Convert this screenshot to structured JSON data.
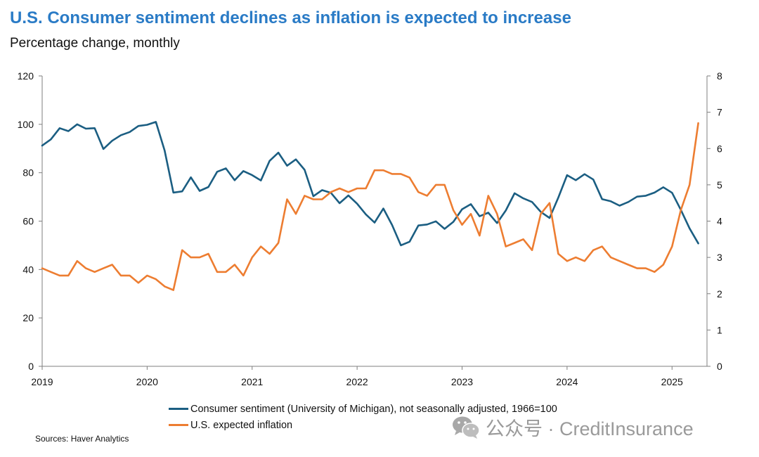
{
  "title": "U.S. Consumer sentiment declines as inflation is expected to increase",
  "subtitle": "Percentage change, monthly",
  "sources": "Sources: Haver Analytics",
  "watermark": {
    "text": "公众号 · CreditInsurance",
    "icon": "wechat-icon"
  },
  "colors": {
    "sentiment": "#1b5e82",
    "inflation": "#ed7d31",
    "title": "#2a7bc6",
    "axis": "#7f7f7f"
  },
  "chart_data": {
    "type": "line",
    "grid": false,
    "legend_position": "bottom",
    "x_range": [
      2019.0,
      2025.333
    ],
    "x_ticks": [
      "2019",
      "2020",
      "2021",
      "2022",
      "2023",
      "2024",
      "2025"
    ],
    "y_left": {
      "range": [
        0,
        120
      ],
      "ticks": [
        "0",
        "20",
        "40",
        "60",
        "80",
        "100",
        "120"
      ]
    },
    "y_right": {
      "range": [
        0,
        8
      ],
      "ticks": [
        "0",
        "1",
        "2",
        "3",
        "4",
        "5",
        "6",
        "7",
        "8"
      ]
    },
    "series": [
      {
        "name": "Consumer sentiment (University of Michigan), not seasonally adjusted, 1966=100",
        "axis": "left",
        "start": "2019-01",
        "values": [
          91.2,
          93.8,
          98.4,
          97.2,
          100.0,
          98.2,
          98.4,
          89.8,
          93.2,
          95.5,
          96.8,
          99.3,
          99.8,
          101.0,
          89.1,
          71.8,
          72.3,
          78.1,
          72.5,
          74.1,
          80.4,
          81.8,
          76.9,
          80.7,
          79.0,
          76.8,
          84.9,
          88.3,
          82.9,
          85.5,
          81.2,
          70.3,
          72.8,
          71.7,
          67.4,
          70.6,
          67.2,
          62.8,
          59.4,
          65.2,
          58.4,
          50.0,
          51.5,
          58.2,
          58.6,
          59.9,
          56.8,
          59.7,
          64.9,
          67.0,
          62.0,
          63.5,
          59.2,
          64.4,
          71.5,
          69.4,
          67.9,
          63.8,
          61.3,
          69.7,
          79.0,
          76.9,
          79.4,
          77.2,
          69.1,
          68.2,
          66.4,
          67.9,
          70.1,
          70.5,
          71.8,
          74.0,
          71.7,
          64.7,
          57.0,
          50.8
        ]
      },
      {
        "name": "U.S. expected inflation",
        "axis": "right",
        "start": "2019-01",
        "values": [
          2.7,
          2.6,
          2.5,
          2.5,
          2.9,
          2.7,
          2.6,
          2.7,
          2.8,
          2.5,
          2.5,
          2.3,
          2.5,
          2.4,
          2.2,
          2.1,
          3.2,
          3.0,
          3.0,
          3.1,
          2.6,
          2.6,
          2.8,
          2.5,
          3.0,
          3.3,
          3.1,
          3.4,
          4.6,
          4.2,
          4.7,
          4.6,
          4.6,
          4.8,
          4.9,
          4.8,
          4.9,
          4.9,
          5.4,
          5.4,
          5.3,
          5.3,
          5.2,
          4.8,
          4.7,
          5.0,
          5.0,
          4.3,
          3.9,
          4.2,
          3.6,
          4.7,
          4.2,
          3.3,
          3.4,
          3.5,
          3.2,
          4.2,
          4.5,
          3.1,
          2.9,
          3.0,
          2.9,
          3.2,
          3.3,
          3.0,
          2.9,
          2.8,
          2.7,
          2.7,
          2.6,
          2.8,
          3.3,
          4.3,
          5.0,
          6.7
        ]
      }
    ]
  }
}
